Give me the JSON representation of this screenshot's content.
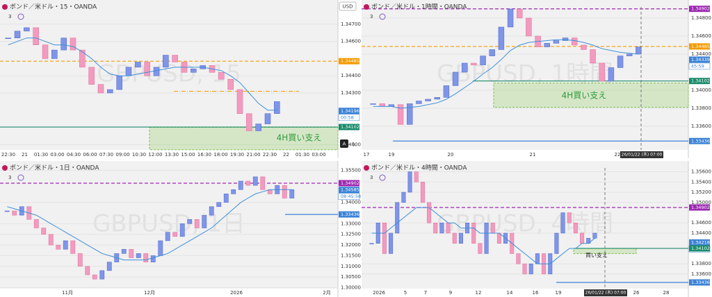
{
  "toolbar": {
    "currency": "USD",
    "buttons": [
      "A",
      "L"
    ]
  },
  "panels": [
    {
      "title": "ボンド／米ドル・15・OANDA",
      "indicators": 3,
      "watermark": "GBPUSD, 15",
      "ylim": [
        1.33969,
        1.34841
      ],
      "yticks": [
        {
          "value": 1.347,
          "label": "1.34700"
        },
        {
          "value": 1.346,
          "label": "1.34600"
        },
        {
          "value": 1.344,
          "label": "1.34400"
        },
        {
          "value": 1.343,
          "label": "1.34300"
        },
        {
          "value": 1.34,
          "label": "1.34000"
        }
      ],
      "time_labels": [
        "22:30",
        "21",
        "01:30",
        "03:00",
        "04:30",
        "06:00",
        "07:30",
        "09:00",
        "10:30",
        "12:00",
        "13:30",
        "15:00",
        "16:30",
        "18:00",
        "19:30",
        "21:00",
        "22:30",
        "22",
        "01:30",
        "03:00"
      ],
      "closes": [
        1.3462,
        1.3466,
        1.3468,
        1.3458,
        1.345,
        1.3455,
        1.3462,
        1.3455,
        1.3445,
        1.3435,
        1.343,
        1.3432,
        1.344,
        1.3445,
        1.3448,
        1.344,
        1.3445,
        1.3452,
        1.3448,
        1.3442,
        1.3444,
        1.3446,
        1.3442,
        1.3438,
        1.3432,
        1.3418,
        1.3408,
        1.3412,
        1.3418,
        1.3425
      ],
      "ma": [
        1.3458,
        1.346,
        1.3462,
        1.3462,
        1.346,
        1.3458,
        1.3458,
        1.3457,
        1.3454,
        1.345,
        1.3445,
        1.3441,
        1.344,
        1.344,
        1.3441,
        1.3442,
        1.3443,
        1.3444,
        1.3445,
        1.3445,
        1.3445,
        1.3445,
        1.3444,
        1.3443,
        1.344,
        1.3436,
        1.343,
        1.3424,
        1.342,
        1.342
      ],
      "price_labels": [
        {
          "value": 1.34485,
          "color": "#f59b00",
          "line": "dashed"
        },
        {
          "value": 1.34196,
          "color": "#3b82d6",
          "line": "none",
          "countdown": "00:58"
        },
        {
          "value": 1.34102,
          "color": "#1a8a6a",
          "line": "solid"
        }
      ],
      "hlines": [
        {
          "value": 1.3431,
          "color": "#f59b00"
        }
      ],
      "zone": {
        "top": 1.341,
        "bottom": 1.3397,
        "text": "4H買い支え"
      }
    },
    {
      "title": "ボンド／米ドル・1時間・OANDA",
      "indicators": 3,
      "watermark": "GBPUSD, 1時間",
      "ylim": [
        1.33338,
        1.35
      ],
      "yticks": [
        {
          "value": 1.348,
          "label": "1.34800"
        },
        {
          "value": 1.346,
          "label": "1.34600"
        },
        {
          "value": 1.344,
          "label": "1.34400"
        },
        {
          "value": 1.34,
          "label": "1.34000"
        },
        {
          "value": 1.338,
          "label": "1.33800"
        },
        {
          "value": 1.336,
          "label": "1.33600"
        }
      ],
      "time_labels": [
        "17",
        "19",
        "20",
        "21",
        "22"
      ],
      "cursor_label": "26/01/22 (木)  07:00",
      "closes": [
        1.3385,
        1.3382,
        1.3384,
        1.3362,
        1.3385,
        1.3388,
        1.339,
        1.3392,
        1.3405,
        1.342,
        1.343,
        1.3428,
        1.3438,
        1.3445,
        1.347,
        1.349,
        1.348,
        1.346,
        1.3448,
        1.3452,
        1.3455,
        1.3458,
        1.345,
        1.3445,
        1.343,
        1.341,
        1.3425,
        1.3438,
        1.344,
        1.3448
      ],
      "ma": [
        1.3382,
        1.3382,
        1.3382,
        1.338,
        1.3381,
        1.3382,
        1.3384,
        1.3386,
        1.339,
        1.3396,
        1.3403,
        1.341,
        1.3418,
        1.3425,
        1.3434,
        1.3444,
        1.345,
        1.3453,
        1.3454,
        1.3455,
        1.3456,
        1.3456,
        1.3455,
        1.3453,
        1.345,
        1.3446,
        1.3444,
        1.3442,
        1.3441,
        1.344
      ],
      "price_labels": [
        {
          "value": 1.34902,
          "color": "#9c27b0",
          "line": "dashed"
        },
        {
          "value": 1.34485,
          "color": "#f59b00",
          "line": "dashed"
        },
        {
          "value": 1.34339,
          "color": "#3b82d6",
          "line": "none",
          "countdown": "45:59"
        },
        {
          "value": 1.34102,
          "color": "#1a8a6a",
          "line": "solid"
        },
        {
          "value": 1.33436,
          "color": "#3b82d6",
          "line": "solid"
        }
      ],
      "hlines": [],
      "zone": {
        "top": 1.3408,
        "bottom": 1.3381,
        "text": "4H買い支え"
      }
    },
    {
      "title": "ボンド／米ドル・1日・OANDA",
      "indicators": 3,
      "watermark": "GBPUSD, 1日",
      "ylim": [
        1.2995,
        1.35944
      ],
      "yticks": [
        {
          "value": 1.355,
          "label": "1.35500"
        },
        {
          "value": 1.34,
          "label": "1.34000"
        },
        {
          "value": 1.33,
          "label": "1.33000"
        },
        {
          "value": 1.325,
          "label": "1.32500"
        },
        {
          "value": 1.32,
          "label": "1.32000"
        },
        {
          "value": 1.315,
          "label": "1.31500"
        },
        {
          "value": 1.31,
          "label": "1.31000"
        },
        {
          "value": 1.305,
          "label": "1.30500"
        },
        {
          "value": 1.3,
          "label": "1.30000"
        }
      ],
      "time_labels": [
        "11月",
        "12月",
        "2026",
        "2月"
      ],
      "closes": [
        1.336,
        1.334,
        1.338,
        1.332,
        1.328,
        1.325,
        1.32,
        1.318,
        1.322,
        1.316,
        1.31,
        1.306,
        1.304,
        1.308,
        1.312,
        1.316,
        1.318,
        1.314,
        1.316,
        1.312,
        1.315,
        1.322,
        1.326,
        1.324,
        1.33,
        1.332,
        1.328,
        1.334,
        1.338,
        1.34,
        1.344,
        1.346,
        1.35,
        1.348,
        1.352,
        1.346,
        1.344,
        1.348,
        1.342,
        1.346
      ],
      "ma": [
        1.338,
        1.337,
        1.336,
        1.335,
        1.334,
        1.332,
        1.33,
        1.328,
        1.326,
        1.324,
        1.322,
        1.32,
        1.318,
        1.316,
        1.315,
        1.314,
        1.313,
        1.313,
        1.313,
        1.313,
        1.314,
        1.315,
        1.316,
        1.318,
        1.32,
        1.322,
        1.324,
        1.326,
        1.328,
        1.331,
        1.334,
        1.337,
        1.34,
        1.342,
        1.344,
        1.345,
        1.346,
        1.346,
        1.346,
        1.346
      ],
      "price_labels": [
        {
          "value": 1.34902,
          "color": "#9c27b0",
          "line": "dashed"
        },
        {
          "value": 1.34585,
          "color": "#3b82d6",
          "line": "none",
          "countdown": "08:45:58"
        },
        {
          "value": 1.33436,
          "color": "#3b82d6",
          "line": "solid"
        }
      ],
      "hlines": []
    },
    {
      "title": "ボンド／米ドル・4時間・OANDA",
      "indicators": 3,
      "watermark": "GBPUSD, 4時間",
      "ylim": [
        1.33314,
        1.35811
      ],
      "yticks": [
        {
          "value": 1.356,
          "label": "1.35600"
        },
        {
          "value": 1.354,
          "label": "1.35400"
        },
        {
          "value": 1.352,
          "label": "1.35200"
        },
        {
          "value": 1.35,
          "label": "1.35000"
        },
        {
          "value": 1.346,
          "label": "1.34600"
        },
        {
          "value": 1.344,
          "label": "1.34400"
        },
        {
          "value": 1.338,
          "label": "1.33800"
        },
        {
          "value": 1.336,
          "label": "1.33600"
        }
      ],
      "time_labels": [
        "2026",
        "5",
        "7",
        "9",
        "12",
        "14",
        "16",
        "19",
        "26",
        "28"
      ],
      "cursor_label": "26/01/22 (木)  07:00",
      "closes": [
        1.342,
        1.346,
        1.34,
        1.344,
        1.35,
        1.352,
        1.356,
        1.354,
        1.35,
        1.346,
        1.344,
        1.346,
        1.344,
        1.342,
        1.344,
        1.346,
        1.342,
        1.34,
        1.346,
        1.344,
        1.342,
        1.344,
        1.34,
        1.338,
        1.336,
        1.338,
        1.34,
        1.336,
        1.34,
        1.344,
        1.348,
        1.346,
        1.344,
        1.342,
        1.343,
        1.344
      ],
      "ma": [
        1.344,
        1.344,
        1.344,
        1.345,
        1.346,
        1.347,
        1.348,
        1.349,
        1.349,
        1.349,
        1.348,
        1.347,
        1.346,
        1.346,
        1.345,
        1.345,
        1.345,
        1.344,
        1.344,
        1.344,
        1.344,
        1.343,
        1.342,
        1.341,
        1.34,
        1.339,
        1.338,
        1.338,
        1.338,
        1.339,
        1.34,
        1.341,
        1.341,
        1.342,
        1.342,
        1.343
      ],
      "price_labels": [
        {
          "value": 1.34902,
          "color": "#9c27b0",
          "line": "dashed"
        },
        {
          "value": 1.34218,
          "color": "#3b82d6",
          "line": "none",
          "countdown": "45:58"
        },
        {
          "value": 1.34102,
          "color": "#1a8a6a",
          "line": "solid"
        },
        {
          "value": 1.33436,
          "color": "#3b82d6",
          "line": "solid"
        }
      ],
      "hlines": [],
      "zone": {
        "top": 1.341,
        "bottom": 1.34,
        "text": "買い支え"
      }
    }
  ]
}
